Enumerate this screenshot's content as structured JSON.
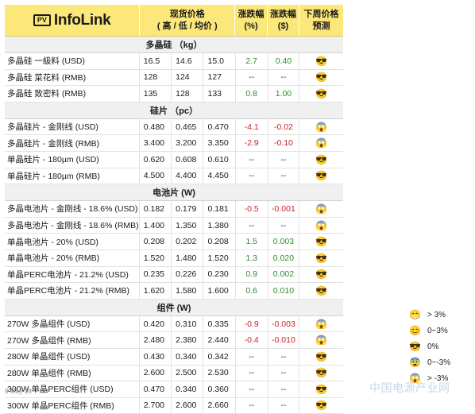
{
  "header": {
    "logo_mark": "PV",
    "logo_text": "InfoLink",
    "spot_price": "现货价格",
    "spot_price_sub": "( 高 / 低 / 均价 )",
    "change_pct": "涨跌幅",
    "change_pct_unit": "(%)",
    "change_usd": "涨跌幅",
    "change_usd_unit": "($)",
    "forecast": "下周价格预测"
  },
  "sections": [
    {
      "title": "多晶硅 （kg）",
      "rows": [
        {
          "name": "多晶硅 一級料 (USD)",
          "high": "16.5",
          "low": "14.6",
          "avg": "15.0",
          "pct": "2.7",
          "usd": "0.40",
          "trend": "pos",
          "icon": "cool-face-icon"
        },
        {
          "name": "多晶硅 菜花料 (RMB)",
          "high": "128",
          "low": "124",
          "avg": "127",
          "pct": "--",
          "usd": "--",
          "trend": "neu",
          "icon": "cool-face-icon"
        },
        {
          "name": "多晶硅 致密料 (RMB)",
          "high": "135",
          "low": "128",
          "avg": "133",
          "pct": "0.8",
          "usd": "1.00",
          "trend": "pos",
          "icon": "cool-face-icon"
        }
      ]
    },
    {
      "title": "硅片 （pc）",
      "rows": [
        {
          "name": "多晶硅片 - 金刚线 (USD)",
          "high": "0.480",
          "low": "0.465",
          "avg": "0.470",
          "pct": "-4.1",
          "usd": "-0.02",
          "trend": "neg",
          "icon": "scream-face-icon"
        },
        {
          "name": "多晶硅片 - 金刚线 (RMB)",
          "high": "3.400",
          "low": "3.200",
          "avg": "3.350",
          "pct": "-2.9",
          "usd": "-0.10",
          "trend": "neg",
          "icon": "scream-face-icon"
        },
        {
          "name": "单晶硅片 - 180µm (USD)",
          "high": "0.620",
          "low": "0.608",
          "avg": "0.610",
          "pct": "--",
          "usd": "--",
          "trend": "neu",
          "icon": "cool-face-icon"
        },
        {
          "name": "单晶硅片 - 180µm (RMB)",
          "high": "4.500",
          "low": "4.400",
          "avg": "4.450",
          "pct": "--",
          "usd": "--",
          "trend": "neu",
          "icon": "cool-face-icon"
        }
      ]
    },
    {
      "title": "电池片 (W)",
      "rows": [
        {
          "name": "多晶电池片 - 金刚线 - 18.6% (USD)",
          "high": "0.182",
          "low": "0.179",
          "avg": "0.181",
          "pct": "-0.5",
          "usd": "-0.001",
          "trend": "neg",
          "icon": "scream-face-icon"
        },
        {
          "name": "多晶电池片 - 金刚线 - 18.6% (RMB)",
          "high": "1.400",
          "low": "1.350",
          "avg": "1.380",
          "pct": "--",
          "usd": "--",
          "trend": "neu",
          "icon": "scream-face-icon"
        },
        {
          "name": "单晶电池片 - 20% (USD)",
          "high": "0.208",
          "low": "0.202",
          "avg": "0.208",
          "pct": "1.5",
          "usd": "0.003",
          "trend": "pos",
          "icon": "cool-face-icon"
        },
        {
          "name": "单晶电池片 - 20% (RMB)",
          "high": "1.520",
          "low": "1.480",
          "avg": "1.520",
          "pct": "1.3",
          "usd": "0.020",
          "trend": "pos",
          "icon": "cool-face-icon"
        },
        {
          "name": "单晶PERC电池片 - 21.2% (USD)",
          "high": "0.235",
          "low": "0.226",
          "avg": "0.230",
          "pct": "0.9",
          "usd": "0.002",
          "trend": "pos",
          "icon": "cool-face-icon"
        },
        {
          "name": "单晶PERC电池片 - 21.2% (RMB)",
          "high": "1.620",
          "low": "1.580",
          "avg": "1.600",
          "pct": "0.6",
          "usd": "0.010",
          "trend": "pos",
          "icon": "cool-face-icon"
        }
      ]
    },
    {
      "title": "组件 (W)",
      "rows": [
        {
          "name": "270W 多晶组件 (USD)",
          "high": "0.420",
          "low": "0.310",
          "avg": "0.335",
          "pct": "-0.9",
          "usd": "-0.003",
          "trend": "neg",
          "icon": "scream-face-icon"
        },
        {
          "name": "270W 多晶组件 (RMB)",
          "high": "2.480",
          "low": "2.380",
          "avg": "2.440",
          "pct": "-0.4",
          "usd": "-0.010",
          "trend": "neg",
          "icon": "scream-face-icon"
        },
        {
          "name": "280W 单晶组件 (USD)",
          "high": "0.430",
          "low": "0.340",
          "avg": "0.342",
          "pct": "--",
          "usd": "--",
          "trend": "neu",
          "icon": "cool-face-icon"
        },
        {
          "name": "280W 单晶组件 (RMB)",
          "high": "2.600",
          "low": "2.500",
          "avg": "2.530",
          "pct": "--",
          "usd": "--",
          "trend": "neu",
          "icon": "cool-face-icon"
        },
        {
          "name": "300W 单晶PERC组件 (USD)",
          "high": "0.470",
          "low": "0.340",
          "avg": "0.360",
          "pct": "--",
          "usd": "--",
          "trend": "neu",
          "icon": "cool-face-icon"
        },
        {
          "name": "300W 单晶PERC组件 (RMB)",
          "high": "2.700",
          "low": "2.600",
          "avg": "2.660",
          "pct": "--",
          "usd": "--",
          "trend": "neu",
          "icon": "cool-face-icon"
        }
      ]
    }
  ],
  "legend": [
    {
      "icon": "grin-face-icon",
      "glyph": "😁",
      "label": "> 3%"
    },
    {
      "icon": "smile-face-icon",
      "glyph": "😊",
      "label": "0~3%"
    },
    {
      "icon": "cool-face-icon",
      "glyph": "😎",
      "label": "0%"
    },
    {
      "icon": "scared-face-icon",
      "glyph": "😨",
      "label": "0~-3%"
    },
    {
      "icon": "scream-face-icon",
      "glyph": "😱",
      "label": "> -3%"
    }
  ],
  "icons": {
    "cool-face-icon": "😎",
    "scream-face-icon": "😱"
  },
  "colors": {
    "header_bg": "#fbe77a",
    "section_bg": "#f0f0f0",
    "up": "#2e8b2e",
    "down": "#cc2222"
  },
  "footer": {
    "date": "9-May-18",
    "watermark": "中国电源产业网"
  }
}
